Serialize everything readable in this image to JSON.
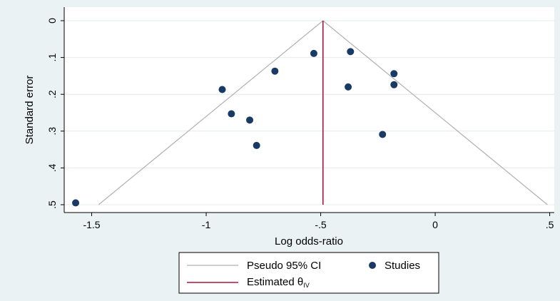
{
  "chart_data": {
    "type": "scatter",
    "title": "",
    "xlabel": "Log odds-ratio",
    "ylabel": "Standard error",
    "xlim": [
      -1.62,
      0.52
    ],
    "ylim": [
      0,
      0.5
    ],
    "y_reversed": true,
    "x_ticks": [
      -1.5,
      -1,
      -0.5,
      0,
      0.5
    ],
    "x_tick_labels": [
      "-1.5",
      "-1",
      "-.5",
      "0",
      ".5"
    ],
    "y_ticks": [
      0,
      0.1,
      0.2,
      0.3,
      0.4,
      0.5
    ],
    "y_tick_labels": [
      "0",
      ".1",
      ".2",
      ".3",
      ".4",
      ".5"
    ],
    "grid": true,
    "estimate": -0.49,
    "ci_level": 1.96,
    "series": [
      {
        "name": "Studies",
        "points": [
          {
            "x": -1.57,
            "y": 0.495
          },
          {
            "x": -0.93,
            "y": 0.187
          },
          {
            "x": -0.89,
            "y": 0.253
          },
          {
            "x": -0.81,
            "y": 0.27
          },
          {
            "x": -0.78,
            "y": 0.339
          },
          {
            "x": -0.7,
            "y": 0.137
          },
          {
            "x": -0.53,
            "y": 0.089
          },
          {
            "x": -0.38,
            "y": 0.18
          },
          {
            "x": -0.37,
            "y": 0.084
          },
          {
            "x": -0.23,
            "y": 0.309
          },
          {
            "x": -0.18,
            "y": 0.144
          },
          {
            "x": -0.18,
            "y": 0.174
          }
        ]
      }
    ],
    "legend": {
      "placement": "bottom",
      "ci_label": "Pseudo 95% CI",
      "studies_label": "Studies",
      "estimate_label": "Estimated θ",
      "estimate_subscript": "IV"
    },
    "colors": {
      "background": "#eaf2f3",
      "plot_bg": "#ffffff",
      "grid": "#e2ebec",
      "ci_line": "#b0b0b0",
      "estimate_line": "#b0123a",
      "point": "#1a3a66"
    }
  }
}
